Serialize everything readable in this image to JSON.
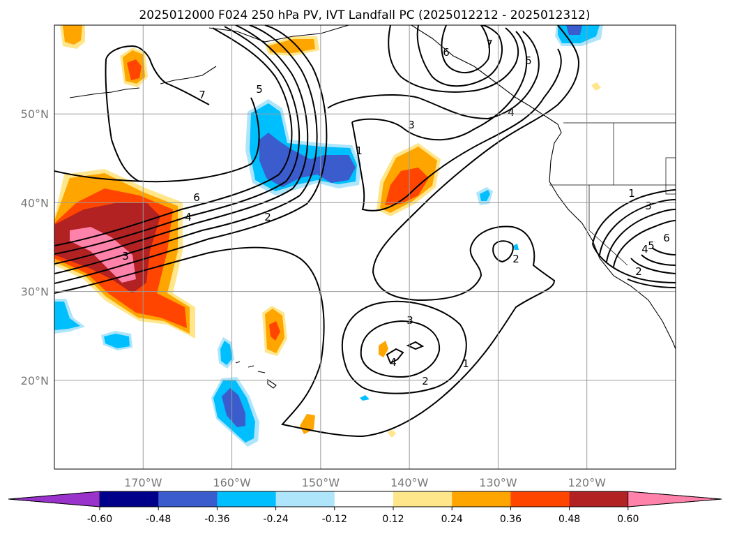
{
  "title": "2025012000 F024 250 hPa PV, IVT Landfall PC (2025012212 - 2025012312)",
  "map": {
    "lon_range": [
      -180,
      -110
    ],
    "lat_range": [
      10,
      60
    ],
    "lon_ticks": [
      {
        "value": -170,
        "label": "170°W"
      },
      {
        "value": -160,
        "label": "160°W"
      },
      {
        "value": -150,
        "label": "150°W"
      },
      {
        "value": -140,
        "label": "140°W"
      },
      {
        "value": -130,
        "label": "130°W"
      },
      {
        "value": -120,
        "label": "120°W"
      }
    ],
    "lat_ticks": [
      {
        "value": 50,
        "label": "50°N"
      },
      {
        "value": 40,
        "label": "40°N"
      },
      {
        "value": 30,
        "label": "30°N"
      },
      {
        "value": 20,
        "label": "20°N"
      }
    ],
    "gridlines": true,
    "contour_labels": [
      "7",
      "5",
      "6",
      "4",
      "2",
      "3",
      "1",
      "7",
      "6",
      "5",
      "4",
      "3",
      "1",
      "2",
      "4",
      "3",
      "2",
      "1",
      "3",
      "5",
      "6",
      "2",
      "4"
    ]
  },
  "colorbar": {
    "ticks": [
      "-0.60",
      "-0.48",
      "-0.36",
      "-0.24",
      "-0.12",
      "0.12",
      "0.24",
      "0.36",
      "0.48",
      "0.60"
    ],
    "colors": [
      "#9933cc",
      "#00008b",
      "#3a5ccc",
      "#00bfff",
      "#aee5fb",
      "#ffffff",
      "#ffe68a",
      "#ffa500",
      "#ff4500",
      "#b22222",
      "#ff82ab"
    ]
  }
}
